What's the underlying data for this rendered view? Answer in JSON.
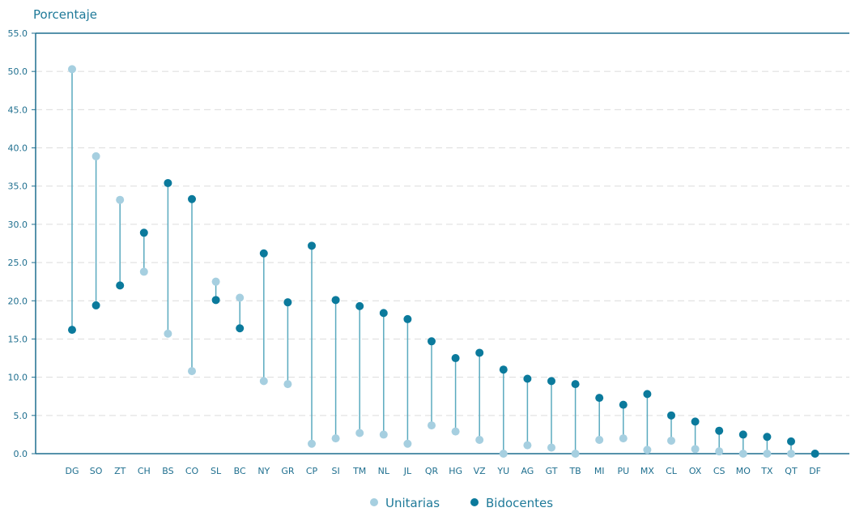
{
  "chart_data": {
    "type": "dumbbell",
    "title": "",
    "ylabel": "Porcentaje",
    "xlabel": "",
    "ylim": [
      0,
      55
    ],
    "yticks": [
      "0.0",
      "5.0",
      "10.0",
      "15.0",
      "20.0",
      "25.0",
      "30.0",
      "35.0",
      "40.0",
      "45.0",
      "50.0",
      "55.0"
    ],
    "grid": "horizontal dashed",
    "categories": [
      "DG",
      "SO",
      "ZT",
      "CH",
      "BS",
      "CO",
      "SL",
      "BC",
      "NY",
      "GR",
      "CP",
      "SI",
      "TM",
      "NL",
      "JL",
      "QR",
      "HG",
      "VZ",
      "YU",
      "AG",
      "GT",
      "TB",
      "MI",
      "PU",
      "MX",
      "CL",
      "OX",
      "CS",
      "MO",
      "TX",
      "QT",
      "DF"
    ],
    "series": [
      {
        "name": "Unitarias",
        "color": "#a6cfe0",
        "values": [
          50.3,
          38.9,
          33.2,
          23.8,
          15.7,
          10.8,
          22.5,
          20.4,
          9.5,
          9.1,
          1.3,
          2.0,
          2.7,
          2.5,
          1.3,
          3.7,
          2.9,
          1.8,
          0.0,
          1.1,
          0.8,
          0.0,
          1.8,
          2.0,
          0.5,
          1.7,
          0.6,
          0.3,
          0.0,
          0.0,
          0.0,
          0.0
        ]
      },
      {
        "name": "Bidocentes",
        "color": "#0b7a9c",
        "values": [
          16.2,
          19.4,
          22.0,
          28.9,
          35.4,
          33.3,
          20.1,
          16.4,
          26.2,
          19.8,
          27.2,
          20.1,
          19.3,
          18.4,
          17.6,
          14.7,
          12.5,
          13.2,
          11.0,
          9.8,
          9.5,
          9.1,
          7.3,
          6.4,
          7.8,
          5.0,
          4.2,
          3.0,
          2.5,
          2.2,
          1.6,
          0.0
        ]
      }
    ],
    "legend": "bottom-center",
    "connector_color": "#5aaabf"
  }
}
